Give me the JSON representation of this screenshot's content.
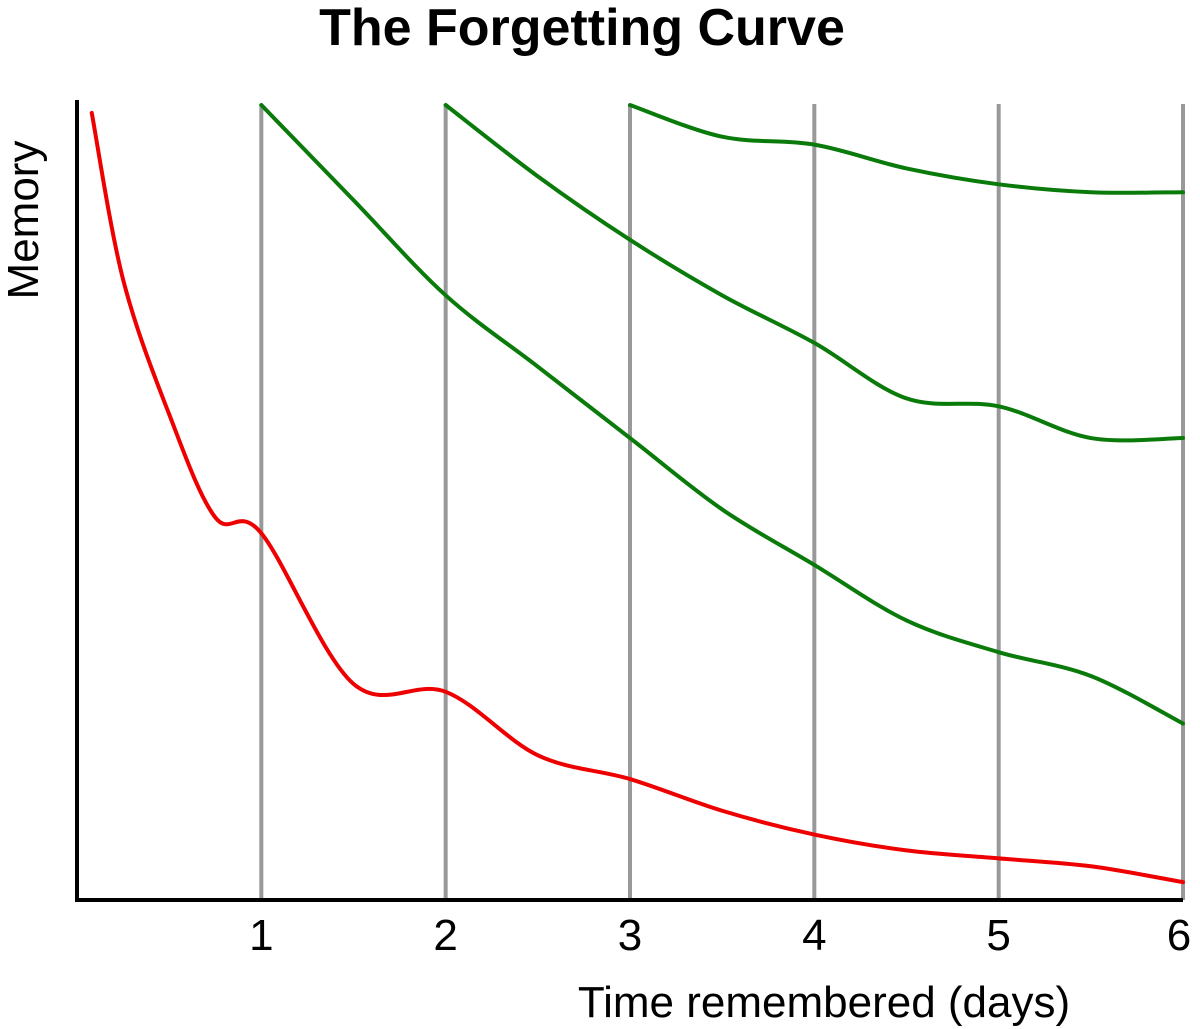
{
  "chart_data": {
    "type": "line",
    "title": "The Forgetting Curve",
    "xlabel": "Time remembered (days)",
    "ylabel": "Memory",
    "xlim": [
      0,
      6
    ],
    "ylim": [
      0,
      100
    ],
    "x_ticks": [
      "1",
      "2",
      "3",
      "4",
      "5",
      "6"
    ],
    "vertical_gridlines": [
      1,
      2,
      3,
      4,
      5,
      6
    ],
    "grid": true,
    "legend": "none",
    "colors": {
      "initial": "#ee0000",
      "review": "#0a7a0a",
      "grid": "#999999",
      "axis": "#000000"
    },
    "series": [
      {
        "x": [
          0.08,
          0.25,
          0.5,
          0.75,
          1.0,
          1.5,
          2.0,
          2.5,
          3.0,
          3.5,
          4.0,
          4.5,
          5.0,
          5.5,
          6.0
        ],
        "values": [
          99,
          78,
          61,
          48,
          46,
          27,
          26,
          18,
          15,
          11,
          8,
          6,
          5,
          4,
          2
        ]
      },
      {
        "x": [
          1.0,
          1.5,
          2.0,
          2.5,
          3.0,
          3.5,
          4.0,
          4.5,
          5.0,
          5.5,
          6.0
        ],
        "values": [
          100,
          88,
          76,
          67,
          58,
          49,
          42,
          35,
          31,
          28,
          22
        ]
      },
      {
        "x": [
          2.0,
          2.5,
          3.0,
          3.5,
          4.0,
          4.5,
          5.0,
          5.5,
          6.0
        ],
        "values": [
          100,
          91,
          83,
          76,
          70,
          63,
          62,
          58,
          58
        ]
      },
      {
        "x": [
          3.0,
          3.5,
          4.0,
          4.5,
          5.0,
          5.5,
          6.0
        ],
        "values": [
          100,
          96,
          95,
          92,
          90,
          89,
          89
        ]
      }
    ]
  }
}
